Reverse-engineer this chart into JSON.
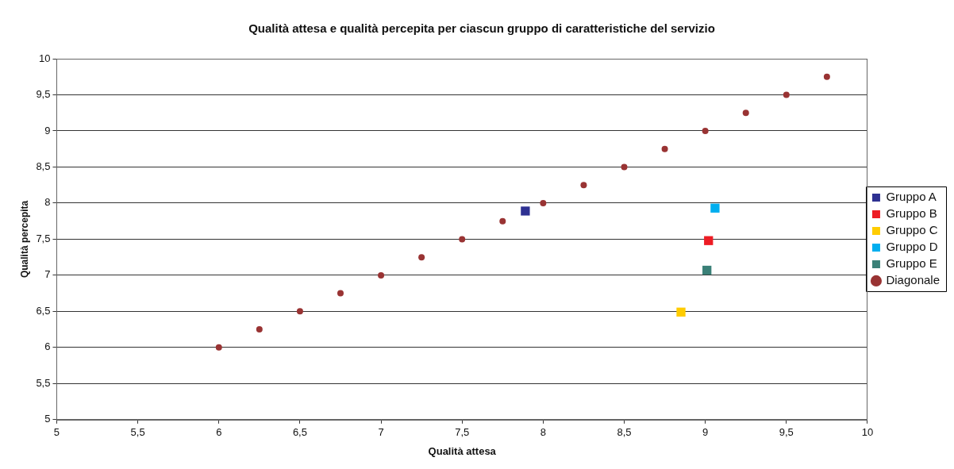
{
  "chart_data": {
    "type": "scatter",
    "title": "Qualità attesa e qualità percepita per ciascun gruppo di caratteristiche del servizio",
    "xlabel": "Qualità attesa",
    "ylabel": "Qualità percepita",
    "xlim": [
      5,
      10
    ],
    "ylim": [
      5,
      10
    ],
    "xticks": [
      5,
      {
        "value": 5.5,
        "label": "5,5"
      },
      6,
      {
        "value": 6.5,
        "label": "6,5"
      },
      7,
      {
        "value": 7.5,
        "label": "7,5"
      },
      8,
      {
        "value": 8.5,
        "label": "8,5"
      },
      9,
      {
        "value": 9.5,
        "label": "9,5"
      },
      10
    ],
    "yticks": [
      5,
      {
        "value": 5.5,
        "label": "5,5"
      },
      6,
      {
        "value": 6.5,
        "label": "6,5"
      },
      7,
      {
        "value": 7.5,
        "label": "7,5"
      },
      8,
      {
        "value": 8.5,
        "label": "8,5"
      },
      9,
      {
        "value": 9.5,
        "label": "9,5"
      },
      10
    ],
    "grid": "y",
    "legend": "right",
    "series": [
      {
        "name": "Gruppo A",
        "color": "#2e3192",
        "marker": "square",
        "x": [
          7.89
        ],
        "values": [
          7.89
        ]
      },
      {
        "name": "Gruppo B",
        "color": "#ed1c24",
        "marker": "square",
        "x": [
          9.02
        ],
        "values": [
          7.48
        ]
      },
      {
        "name": "Gruppo C",
        "color": "#ffcc00",
        "marker": "square",
        "x": [
          8.85
        ],
        "values": [
          6.49
        ]
      },
      {
        "name": "Gruppo D",
        "color": "#00aeef",
        "marker": "square",
        "x": [
          9.06
        ],
        "values": [
          7.93
        ]
      },
      {
        "name": "Gruppo E",
        "color": "#3a8077",
        "marker": "square",
        "x": [
          9.01
        ],
        "values": [
          7.07
        ]
      },
      {
        "name": "Diagonale",
        "color": "#993333",
        "marker": "circle",
        "x": [
          6,
          6.25,
          6.5,
          6.75,
          7,
          7.25,
          7.5,
          7.75,
          8,
          8.25,
          8.5,
          8.75,
          9,
          9.25,
          9.5,
          9.75
        ],
        "values": [
          6,
          6.25,
          6.5,
          6.75,
          7,
          7.25,
          7.5,
          7.75,
          8,
          8.25,
          8.5,
          8.75,
          9,
          9.25,
          9.5,
          9.75
        ]
      }
    ]
  }
}
